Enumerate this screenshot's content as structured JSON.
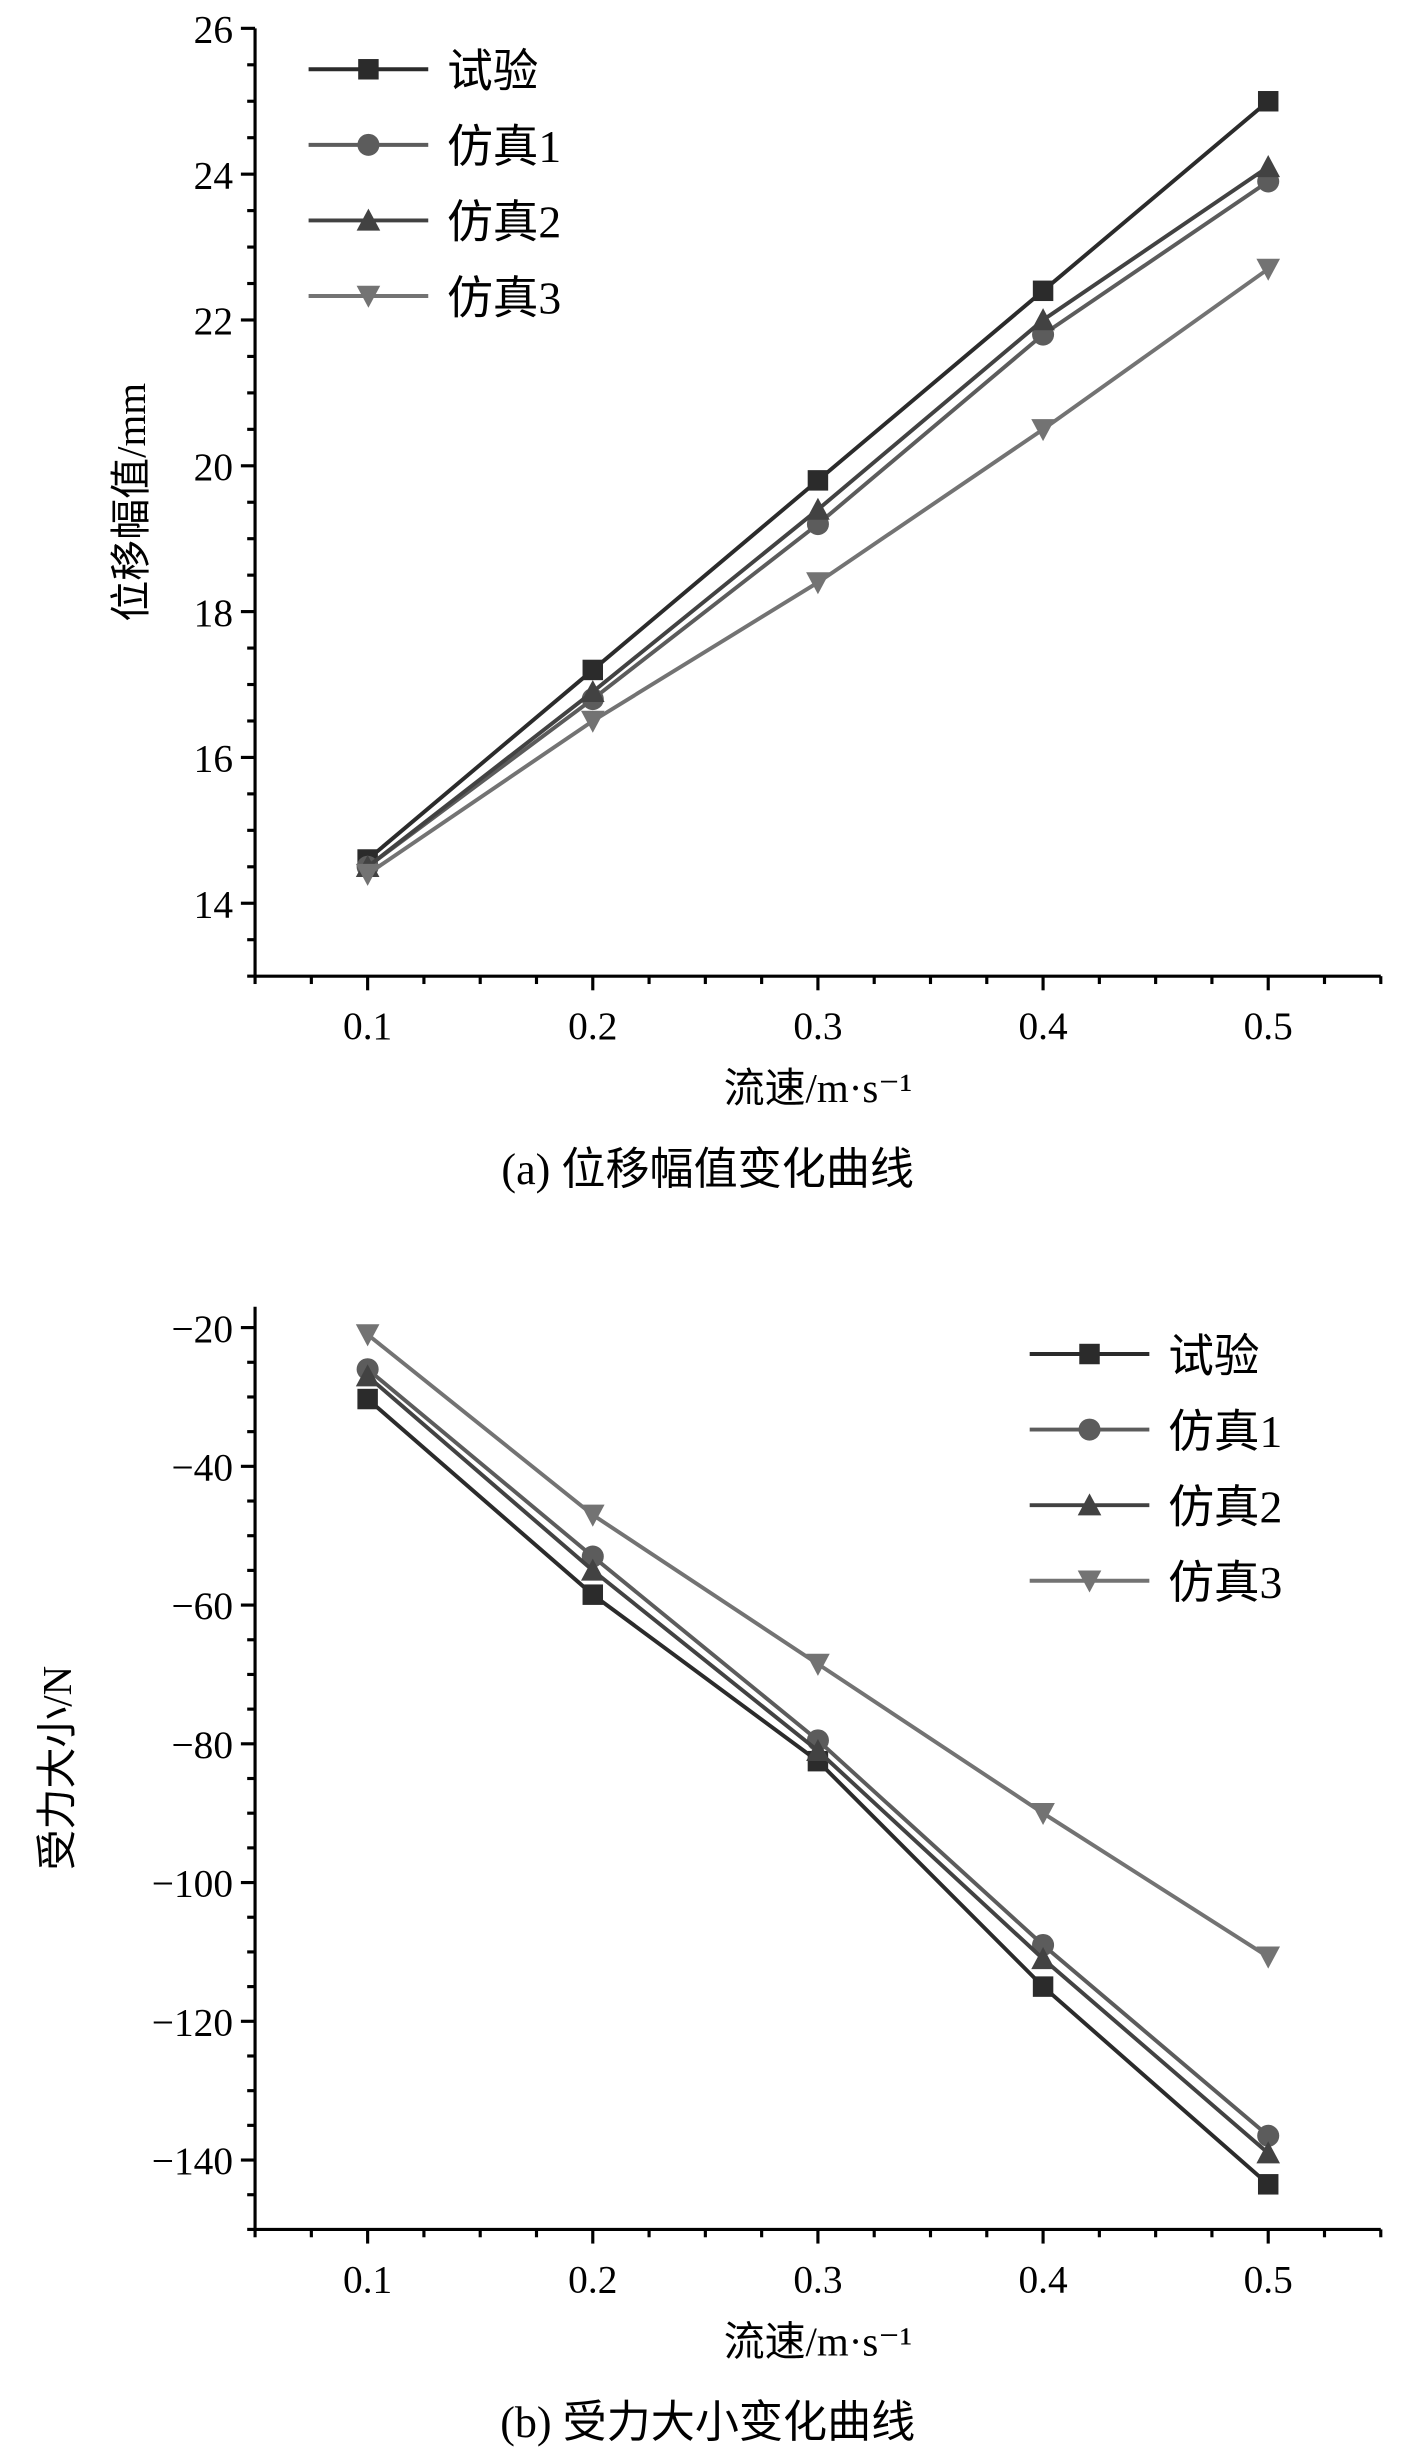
{
  "chart_data": [
    {
      "type": "line",
      "caption": "(a) 位移幅值变化曲线",
      "xlabel": "流速/m·s⁻¹",
      "ylabel": "位移幅值/mm",
      "x": [
        0.1,
        0.2,
        0.3,
        0.4,
        0.5
      ],
      "xlim": [
        0.05,
        0.55
      ],
      "ylim": [
        13,
        26
      ],
      "xticks": [
        "0.1",
        "0.2",
        "0.3",
        "0.4",
        "0.5"
      ],
      "yticks": [
        14,
        16,
        18,
        20,
        22,
        24,
        26
      ],
      "ytick_labels": [
        "14",
        "16",
        "18",
        "20",
        "22",
        "24",
        "26"
      ],
      "y_minor": 0.5,
      "legend_position": "top-left",
      "series": [
        {
          "name": "试验",
          "marker": "square",
          "color": "#2b2b2b",
          "values": [
            14.6,
            17.2,
            19.8,
            22.4,
            25.0
          ]
        },
        {
          "name": "仿真1",
          "marker": "circle",
          "color": "#5c5c5c",
          "values": [
            14.5,
            16.8,
            19.2,
            21.8,
            23.9
          ]
        },
        {
          "name": "仿真2",
          "marker": "triangle-up",
          "color": "#424242",
          "values": [
            14.5,
            16.9,
            19.4,
            22.0,
            24.1
          ]
        },
        {
          "name": "仿真3",
          "marker": "triangle-down",
          "color": "#737373",
          "values": [
            14.4,
            16.5,
            18.4,
            20.5,
            22.7
          ]
        }
      ]
    },
    {
      "type": "line",
      "caption": "(b) 受力大小变化曲线",
      "xlabel": "流速/m·s⁻¹",
      "ylabel": "受力大小/N",
      "x": [
        0.1,
        0.2,
        0.3,
        0.4,
        0.5
      ],
      "xlim": [
        0.05,
        0.55
      ],
      "ylim": [
        -150,
        -17
      ],
      "xticks": [
        "0.1",
        "0.2",
        "0.3",
        "0.4",
        "0.5"
      ],
      "yticks": [
        -140,
        -120,
        -100,
        -80,
        -60,
        -40,
        -20
      ],
      "ytick_labels": [
        "−140",
        "−120",
        "−100",
        "−80",
        "−60",
        "−40",
        "−20"
      ],
      "y_minor": 5,
      "legend_position": "top-right",
      "series": [
        {
          "name": "试验",
          "marker": "square",
          "color": "#2b2b2b",
          "values": [
            -30.3,
            -58.5,
            -82.5,
            -115.0,
            -143.5
          ]
        },
        {
          "name": "仿真1",
          "marker": "circle",
          "color": "#5c5c5c",
          "values": [
            -26.0,
            -53.0,
            -79.5,
            -109.0,
            -136.5
          ]
        },
        {
          "name": "仿真2",
          "marker": "triangle-up",
          "color": "#424242",
          "values": [
            -27.0,
            -55.0,
            -81.0,
            -111.0,
            -139.0
          ]
        },
        {
          "name": "仿真3",
          "marker": "triangle-down",
          "color": "#737373",
          "values": [
            -21.0,
            -47.0,
            -68.5,
            -90.0,
            -110.7
          ]
        }
      ]
    }
  ]
}
